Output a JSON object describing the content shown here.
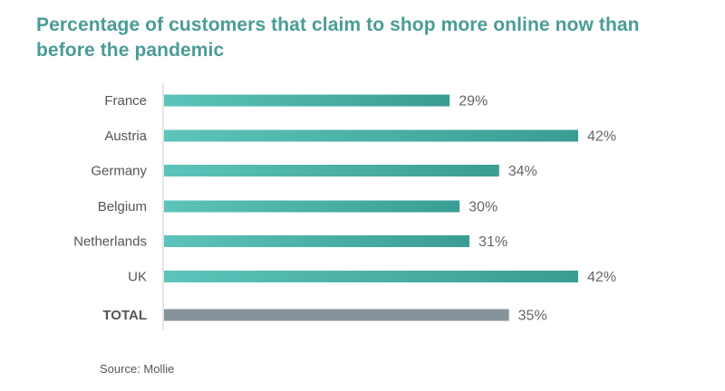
{
  "chart_data": {
    "type": "bar",
    "orientation": "horizontal",
    "title": "Percentage of customers that claim to shop more online now than before the pandemic",
    "categories": [
      "France",
      "Austria",
      "Germany",
      "Belgium",
      "Netherlands",
      "UK",
      "TOTAL"
    ],
    "values": [
      29,
      42,
      34,
      30,
      31,
      42,
      35
    ],
    "value_labels": [
      "29%",
      "42%",
      "34%",
      "30%",
      "31%",
      "42%",
      "35%"
    ],
    "unit": "%",
    "xlim": [
      0,
      42
    ],
    "grid": false,
    "legend": "none",
    "colors": {
      "bar_start": "#5cc4ba",
      "bar_end": "#3a9d93",
      "total_bar": "#87939a",
      "axis": "#cccccc",
      "label": "#555555",
      "value_label": "#666666",
      "title": "#4a9c95"
    }
  },
  "source": "Source: Mollie"
}
